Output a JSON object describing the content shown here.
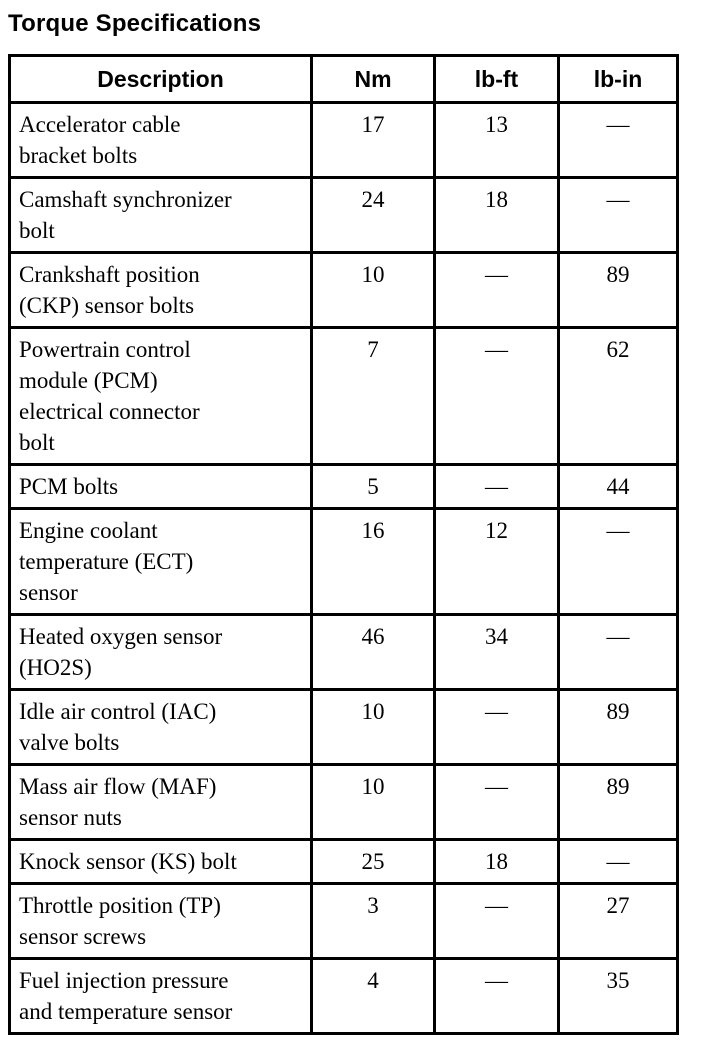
{
  "title": "Torque Specifications",
  "colors": {
    "text": "#000000",
    "background": "#ffffff",
    "border": "#000000"
  },
  "table": {
    "headers": [
      "Description",
      "Nm",
      "lb-ft",
      "lb-in"
    ],
    "rows": [
      {
        "description": "Accelerator cable\nbracket bolts",
        "nm": "17",
        "lb_ft": "13",
        "lb_in": "—"
      },
      {
        "description": "Camshaft synchronizer\nbolt",
        "nm": "24",
        "lb_ft": "18",
        "lb_in": "—"
      },
      {
        "description": "Crankshaft position\n(CKP) sensor bolts",
        "nm": "10",
        "lb_ft": "—",
        "lb_in": "89"
      },
      {
        "description": "Powertrain control\nmodule (PCM)\nelectrical connector\nbolt",
        "nm": "7",
        "lb_ft": "—",
        "lb_in": "62"
      },
      {
        "description": "PCM bolts",
        "nm": "5",
        "lb_ft": "—",
        "lb_in": "44"
      },
      {
        "description": "Engine coolant\ntemperature (ECT)\nsensor",
        "nm": "16",
        "lb_ft": "12",
        "lb_in": "—"
      },
      {
        "description": "Heated oxygen sensor\n(HO2S)",
        "nm": "46",
        "lb_ft": "34",
        "lb_in": "—"
      },
      {
        "description": "Idle air control (IAC)\nvalve bolts",
        "nm": "10",
        "lb_ft": "—",
        "lb_in": "89"
      },
      {
        "description": "Mass air flow (MAF)\nsensor nuts",
        "nm": "10",
        "lb_ft": "—",
        "lb_in": "89"
      },
      {
        "description": "Knock sensor (KS) bolt",
        "nm": "25",
        "lb_ft": "18",
        "lb_in": "—"
      },
      {
        "description": "Throttle position (TP)\nsensor screws",
        "nm": "3",
        "lb_ft": "—",
        "lb_in": "27"
      },
      {
        "description": "Fuel injection pressure\nand temperature sensor",
        "nm": "4",
        "lb_ft": "—",
        "lb_in": "35"
      }
    ]
  }
}
